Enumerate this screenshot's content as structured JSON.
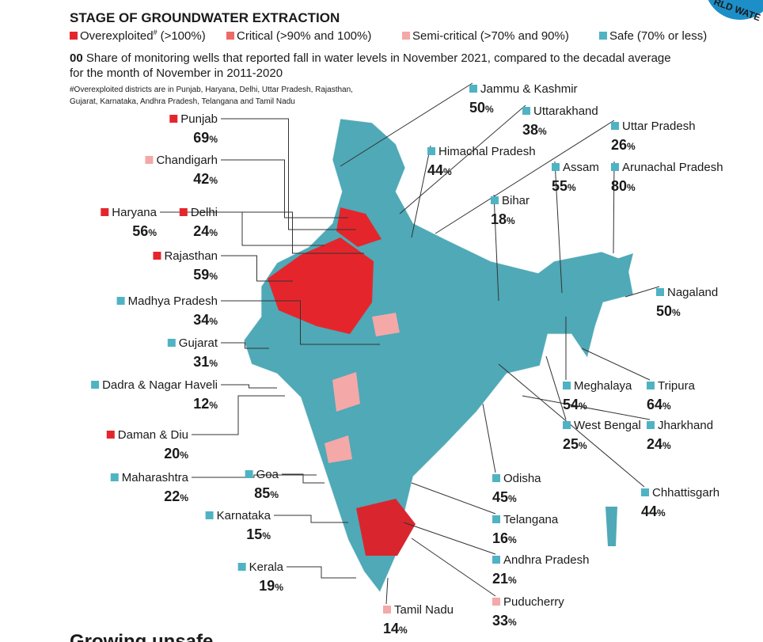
{
  "header": {
    "title": "STAGE OF GROUNDWATER EXTRACTION",
    "legend": [
      {
        "label": "Overexploited",
        "sup": "#",
        "range": "(>100%)",
        "color": "#e4262c"
      },
      {
        "label": "Critical",
        "range": "(>90% and 100%)",
        "color": "#ee6a66"
      },
      {
        "label": "Semi-critical",
        "range": "(>70% and 90%)",
        "color": "#f4a8a8"
      },
      {
        "label": "Safe",
        "range": "(70% or less)",
        "color": "#4fb3c4"
      }
    ],
    "key_sample": "00",
    "key_text_1": "Share of monitoring wells that reported fall in water levels in November 2021, compared to the decadal average",
    "key_text_2": "for the month of November in 2011-2020",
    "note_1": "#Overexploited districts are in Punjab, Haryana, Delhi, Uttar Pradesh, Rajasthan,",
    "note_2": "Gujarat, Karnataka, Andhra Pradesh, Telangana and Tamil Nadu",
    "badge": "RLD WATE"
  },
  "states": [
    {
      "name": "Jammu & Kashmir",
      "value": 50,
      "unit": "%",
      "color": "#4fb3c4"
    },
    {
      "name": "Uttarakhand",
      "value": 38,
      "unit": "%",
      "color": "#4fb3c4"
    },
    {
      "name": "Uttar Pradesh",
      "value": 26,
      "unit": "%",
      "color": "#4fb3c4"
    },
    {
      "name": "Himachal Pradesh",
      "value": 44,
      "unit": "%",
      "color": "#4fb3c4"
    },
    {
      "name": "Assam",
      "value": 55,
      "unit": "%",
      "color": "#4fb3c4"
    },
    {
      "name": "Arunachal Pradesh",
      "value": 80,
      "unit": "%",
      "color": "#4fb3c4"
    },
    {
      "name": "Bihar",
      "value": 18,
      "unit": "%",
      "color": "#4fb3c4"
    },
    {
      "name": "Punjab",
      "value": 69,
      "unit": "%",
      "color": "#e4262c"
    },
    {
      "name": "Chandigarh",
      "value": 42,
      "unit": "%",
      "color": "#f4a8a8"
    },
    {
      "name": "Haryana",
      "value": 56,
      "unit": "%",
      "color": "#e4262c"
    },
    {
      "name": "Delhi",
      "value": 24,
      "unit": "%",
      "color": "#e4262c"
    },
    {
      "name": "Rajasthan",
      "value": 59,
      "unit": "%",
      "color": "#e4262c"
    },
    {
      "name": "Madhya Pradesh",
      "value": 34,
      "unit": "%",
      "color": "#4fb3c4"
    },
    {
      "name": "Gujarat",
      "value": 31,
      "unit": "%",
      "color": "#4fb3c4"
    },
    {
      "name": "Dadra & Nagar Haveli",
      "value": 12,
      "unit": "%",
      "color": "#4fb3c4"
    },
    {
      "name": "Daman & Diu",
      "value": 20,
      "unit": "%",
      "color": "#e4262c"
    },
    {
      "name": "Maharashtra",
      "value": 22,
      "unit": "%",
      "color": "#4fb3c4"
    },
    {
      "name": "Goa",
      "value": 85,
      "unit": "%",
      "color": "#4fb3c4"
    },
    {
      "name": "Karnataka",
      "value": 15,
      "unit": "%",
      "color": "#4fb3c4"
    },
    {
      "name": "Kerala",
      "value": 19,
      "unit": "%",
      "color": "#4fb3c4"
    },
    {
      "name": "Tamil Nadu",
      "value": 14,
      "unit": "%",
      "color": "#f4a8a8"
    },
    {
      "name": "Puducherry",
      "value": 33,
      "unit": "%",
      "color": "#f4a8a8"
    },
    {
      "name": "Andhra Pradesh",
      "value": 21,
      "unit": "%",
      "color": "#4fb3c4"
    },
    {
      "name": "Telangana",
      "value": 16,
      "unit": "%",
      "color": "#4fb3c4"
    },
    {
      "name": "Odisha",
      "value": 45,
      "unit": "%",
      "color": "#4fb3c4"
    },
    {
      "name": "Chhattisgarh",
      "value": 44,
      "unit": "%",
      "color": "#4fb3c4"
    },
    {
      "name": "West Bengal",
      "value": 25,
      "unit": "%",
      "color": "#4fb3c4"
    },
    {
      "name": "Jharkhand",
      "value": 24,
      "unit": "%",
      "color": "#4fb3c4"
    },
    {
      "name": "Meghalaya",
      "value": 54,
      "unit": "%",
      "color": "#4fb3c4"
    },
    {
      "name": "Tripura",
      "value": 64,
      "unit": "%",
      "color": "#4fb3c4"
    },
    {
      "name": "Nagaland",
      "value": 50,
      "unit": "%",
      "color": "#4fb3c4"
    }
  ],
  "footer": {
    "heading": "Growing unsafe"
  }
}
